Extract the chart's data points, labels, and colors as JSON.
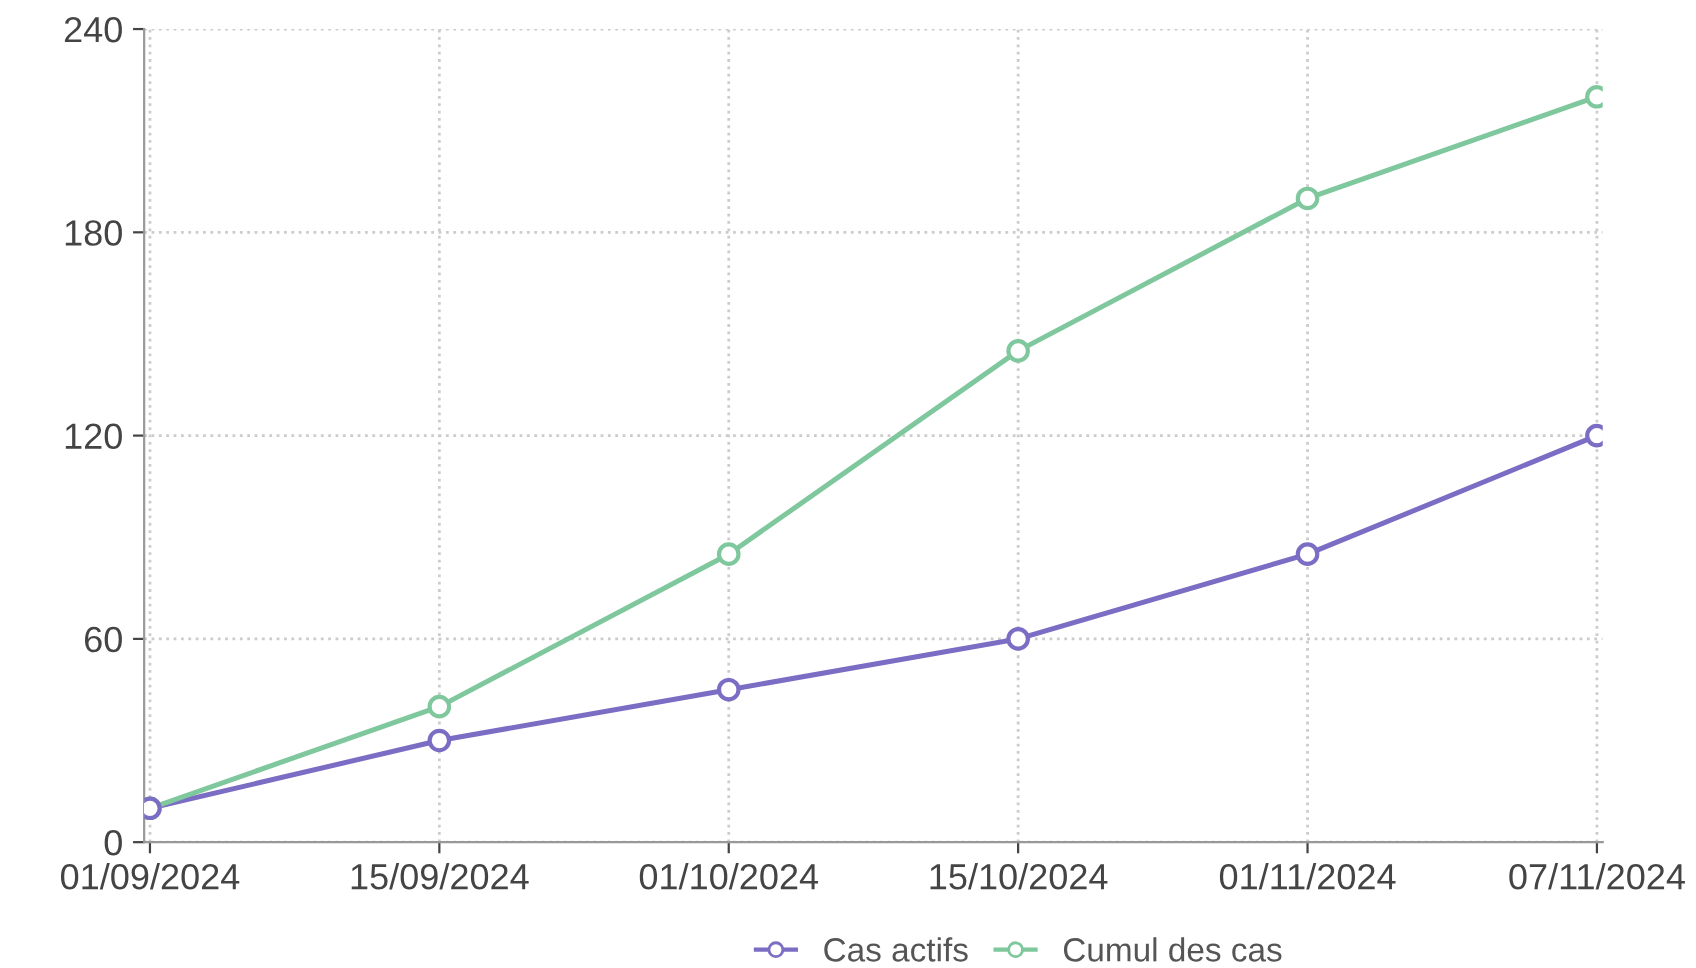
{
  "chart_data": {
    "type": "line",
    "categories": [
      "01/09/2024",
      "15/09/2024",
      "01/10/2024",
      "15/10/2024",
      "01/11/2024",
      "07/11/2024"
    ],
    "series": [
      {
        "name": "Cas actifs",
        "color": "#7b6cc4",
        "values": [
          10,
          30,
          45,
          60,
          85,
          120
        ]
      },
      {
        "name": "Cumul des cas",
        "color": "#7fc79c",
        "values": [
          10,
          40,
          85,
          145,
          190,
          220
        ]
      }
    ],
    "ylim": [
      0,
      240
    ],
    "yticks": [
      0,
      60,
      120,
      180,
      240
    ],
    "grid": true,
    "legend": "bottom",
    "marker": "circle",
    "line_style": "solid"
  }
}
